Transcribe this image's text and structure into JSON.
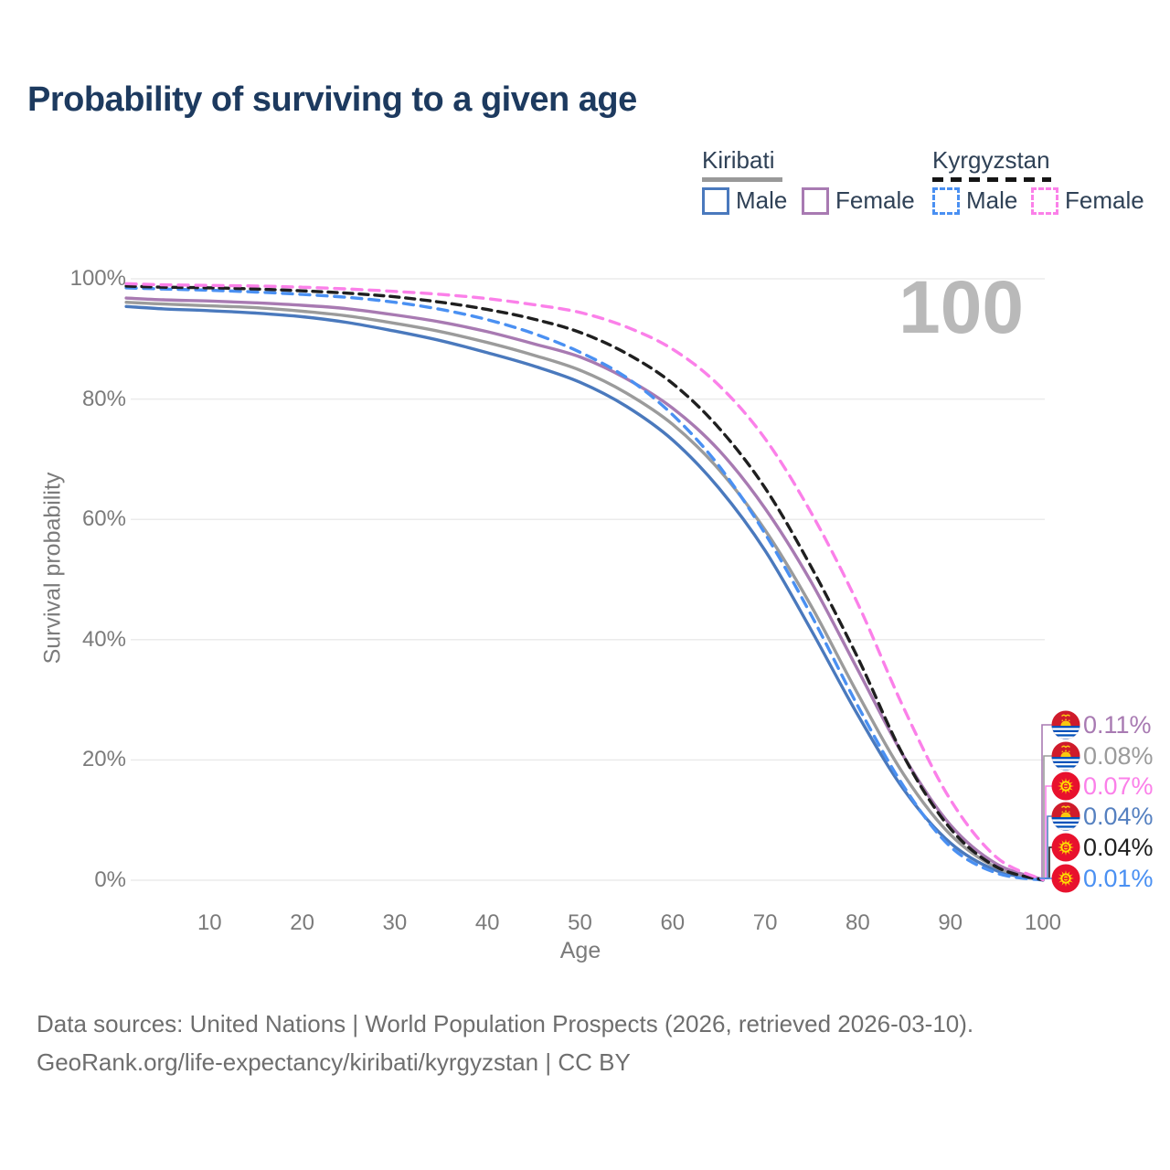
{
  "title": "Probability of surviving to a given age",
  "watermark": "100",
  "legend": {
    "kiribati": {
      "name": "Kiribati",
      "male": "Male",
      "female": "Female"
    },
    "kyrgyzstan": {
      "name": "Kyrgyzstan",
      "male": "Male",
      "female": "Female"
    }
  },
  "axes": {
    "y_title": "Survival probability",
    "x_title": "Age",
    "y_ticks": [
      "0%",
      "20%",
      "40%",
      "60%",
      "80%",
      "100%"
    ],
    "x_ticks": [
      10,
      20,
      30,
      40,
      50,
      60,
      70,
      80,
      90,
      100
    ]
  },
  "chart_data": {
    "type": "line",
    "title": "Probability of surviving to a given age",
    "xlabel": "Age",
    "ylabel": "Survival probability",
    "xlim": [
      0,
      100
    ],
    "ylim_pct": [
      0,
      100
    ],
    "grid": "horizontal",
    "legend_position": "top-right",
    "ages": [
      1,
      5,
      10,
      15,
      20,
      25,
      30,
      35,
      40,
      45,
      50,
      55,
      60,
      65,
      70,
      75,
      80,
      85,
      90,
      95,
      100
    ],
    "series": [
      {
        "name": "Kiribati Male",
        "country": "kiribati",
        "sex": "male",
        "style": "solid",
        "color": "#4a79bd",
        "values_pct": [
          95.4,
          95.0,
          94.7,
          94.3,
          93.7,
          92.7,
          91.3,
          89.7,
          87.7,
          85.5,
          82.8,
          78.8,
          73.2,
          65.2,
          54.8,
          41.5,
          27.5,
          15.0,
          6.2,
          1.6,
          0.04
        ]
      },
      {
        "name": "Kiribati (both sexes)",
        "country": "kiribati",
        "sex": "all",
        "style": "solid",
        "color": "#9b9b9b",
        "values_pct": [
          96.1,
          95.8,
          95.5,
          95.2,
          94.6,
          93.8,
          92.6,
          91.2,
          89.4,
          87.3,
          84.8,
          81.0,
          75.8,
          68.3,
          58.2,
          45.5,
          31.0,
          17.5,
          7.6,
          2.1,
          0.08
        ]
      },
      {
        "name": "Kiribati Female",
        "country": "kiribati",
        "sex": "female",
        "style": "solid",
        "color": "#a87ab2",
        "values_pct": [
          96.8,
          96.5,
          96.3,
          96.0,
          95.6,
          95.0,
          94.0,
          92.8,
          91.2,
          89.2,
          87.0,
          83.4,
          78.5,
          71.5,
          61.8,
          49.5,
          35.0,
          20.5,
          9.2,
          2.7,
          0.11
        ]
      },
      {
        "name": "Kyrgyzstan Male",
        "country": "kyrgyzstan",
        "sex": "male",
        "style": "dashed",
        "color": "#4a90f2",
        "values_pct": [
          98.5,
          98.3,
          98.1,
          97.8,
          97.4,
          96.9,
          96.1,
          94.9,
          93.2,
          90.9,
          87.8,
          83.6,
          77.4,
          68.9,
          57.6,
          44.0,
          29.0,
          15.5,
          5.6,
          1.2,
          0.01
        ]
      },
      {
        "name": "Kyrgyzstan (both sexes)",
        "country": "kyrgyzstan",
        "sex": "all",
        "style": "dashed",
        "color": "#1f1f1f",
        "values_pct": [
          98.8,
          98.6,
          98.5,
          98.3,
          98.0,
          97.6,
          97.0,
          96.1,
          94.9,
          93.3,
          91.1,
          87.6,
          82.6,
          75.2,
          65.2,
          52.0,
          37.0,
          20.5,
          8.6,
          2.2,
          0.04
        ]
      },
      {
        "name": "Kyrgyzstan Female",
        "country": "kyrgyzstan",
        "sex": "female",
        "style": "dashed",
        "color": "#fb80e9",
        "values_pct": [
          99.2,
          99.0,
          98.9,
          98.8,
          98.6,
          98.3,
          97.9,
          97.4,
          96.7,
          95.7,
          94.4,
          92.0,
          88.3,
          82.3,
          73.4,
          61.0,
          46.0,
          28.5,
          13.4,
          3.8,
          0.07
        ]
      }
    ]
  },
  "end_labels": [
    {
      "value": "0.11%",
      "color": "#a87ab2",
      "country": "kiribati",
      "series": "Kiribati Female"
    },
    {
      "value": "0.08%",
      "color": "#9b9b9b",
      "country": "kiribati",
      "series": "Kiribati (both sexes)"
    },
    {
      "value": "0.07%",
      "color": "#fb80e9",
      "country": "kyrgyzstan",
      "series": "Kyrgyzstan Female"
    },
    {
      "value": "0.04%",
      "color": "#5580c0",
      "country": "kiribati",
      "series": "Kiribati Male"
    },
    {
      "value": "0.04%",
      "color": "#1f1f1f",
      "country": "kyrgyzstan",
      "series": "Kyrgyzstan (both sexes)"
    },
    {
      "value": "0.01%",
      "color": "#4a90f2",
      "country": "kyrgyzstan",
      "series": "Kyrgyzstan Male"
    }
  ],
  "footer": {
    "line1": "Data sources: United Nations | World Population Prospects (2026, retrieved 2026-03-10).",
    "line2": "GeoRank.org/life-expectancy/kiribati/kyrgyzstan | CC BY"
  }
}
